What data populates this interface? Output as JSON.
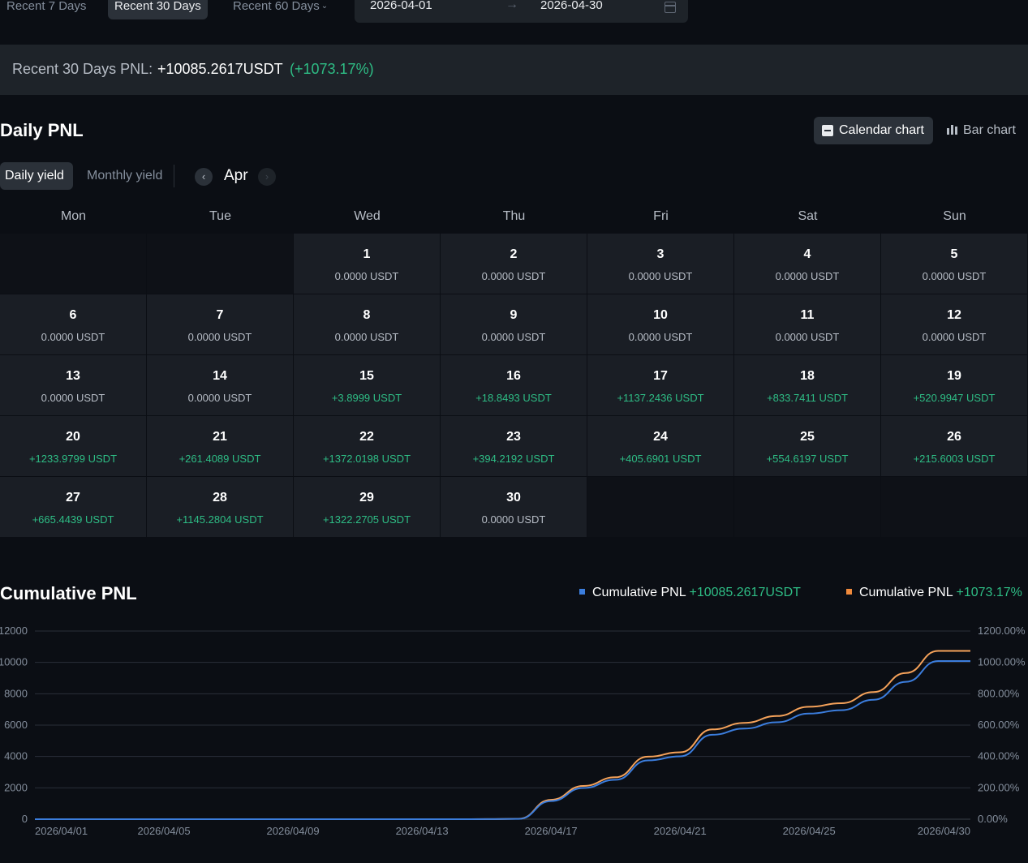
{
  "range": {
    "tabs": [
      {
        "label": "Recent 7 Days",
        "active": false
      },
      {
        "label": "Recent 30 Days",
        "active": true
      },
      {
        "label": "Recent 60 Days",
        "active": false
      }
    ],
    "date_from": "2026-04-01",
    "date_to": "2026-04-30"
  },
  "summary": {
    "label": "Recent 30 Days PNL:",
    "value": "+10085.2617USDT",
    "pct": "(+1073.17%)"
  },
  "daily": {
    "title": "Daily PNL",
    "view_calendar": "Calendar chart",
    "view_bar": "Bar chart",
    "tab_daily": "Daily yield",
    "tab_monthly": "Monthly yield",
    "month": "Apr",
    "weekdays": [
      "Mon",
      "Tue",
      "Wed",
      "Thu",
      "Fri",
      "Sat",
      "Sun"
    ],
    "first_weekday_index": 2,
    "days": [
      {
        "day": "1",
        "pnl": "0.0000 USDT"
      },
      {
        "day": "2",
        "pnl": "0.0000 USDT"
      },
      {
        "day": "3",
        "pnl": "0.0000 USDT"
      },
      {
        "day": "4",
        "pnl": "0.0000 USDT"
      },
      {
        "day": "5",
        "pnl": "0.0000 USDT"
      },
      {
        "day": "6",
        "pnl": "0.0000 USDT"
      },
      {
        "day": "7",
        "pnl": "0.0000 USDT"
      },
      {
        "day": "8",
        "pnl": "0.0000 USDT"
      },
      {
        "day": "9",
        "pnl": "0.0000 USDT"
      },
      {
        "day": "10",
        "pnl": "0.0000 USDT"
      },
      {
        "day": "11",
        "pnl": "0.0000 USDT"
      },
      {
        "day": "12",
        "pnl": "0.0000 USDT"
      },
      {
        "day": "13",
        "pnl": "0.0000 USDT"
      },
      {
        "day": "14",
        "pnl": "0.0000 USDT"
      },
      {
        "day": "15",
        "pnl": "+3.8999 USDT"
      },
      {
        "day": "16",
        "pnl": "+18.8493 USDT"
      },
      {
        "day": "17",
        "pnl": "+1137.2436 USDT"
      },
      {
        "day": "18",
        "pnl": "+833.7411 USDT"
      },
      {
        "day": "19",
        "pnl": "+520.9947 USDT"
      },
      {
        "day": "20",
        "pnl": "+1233.9799 USDT"
      },
      {
        "day": "21",
        "pnl": "+261.4089 USDT"
      },
      {
        "day": "22",
        "pnl": "+1372.0198 USDT"
      },
      {
        "day": "23",
        "pnl": "+394.2192 USDT"
      },
      {
        "day": "24",
        "pnl": "+405.6901 USDT"
      },
      {
        "day": "25",
        "pnl": "+554.6197 USDT"
      },
      {
        "day": "26",
        "pnl": "+215.6003 USDT"
      },
      {
        "day": "27",
        "pnl": "+665.4439 USDT"
      },
      {
        "day": "28",
        "pnl": "+1145.2804 USDT"
      },
      {
        "day": "29",
        "pnl": "+1322.2705 USDT"
      },
      {
        "day": "30",
        "pnl": "0.0000 USDT"
      }
    ]
  },
  "cumulative": {
    "title": "Cumulative PNL",
    "legend": [
      {
        "label": "Cumulative PNL",
        "value": "+10085.2617USDT",
        "color": "#3b7ddd"
      },
      {
        "label": "Cumulative PNL",
        "value": "+1073.17%",
        "color": "#f08a3c"
      }
    ]
  },
  "colors": {
    "positive": "#2ebd85",
    "series_usdt": "#3b7ddd",
    "series_pct": "#f5a25a"
  },
  "chart_data": {
    "type": "line",
    "title": "Cumulative PNL",
    "x": [
      "2026/04/01",
      "2026/04/02",
      "2026/04/03",
      "2026/04/04",
      "2026/04/05",
      "2026/04/06",
      "2026/04/07",
      "2026/04/08",
      "2026/04/09",
      "2026/04/10",
      "2026/04/11",
      "2026/04/12",
      "2026/04/13",
      "2026/04/14",
      "2026/04/15",
      "2026/04/16",
      "2026/04/17",
      "2026/04/18",
      "2026/04/19",
      "2026/04/20",
      "2026/04/21",
      "2026/04/22",
      "2026/04/23",
      "2026/04/24",
      "2026/04/25",
      "2026/04/26",
      "2026/04/27",
      "2026/04/28",
      "2026/04/29",
      "2026/04/30"
    ],
    "x_tick_labels": [
      "2026/04/01",
      "2026/04/05",
      "2026/04/09",
      "2026/04/13",
      "2026/04/17",
      "2026/04/21",
      "2026/04/25",
      "2026/04/30"
    ],
    "series": [
      {
        "name": "Cumulative PNL",
        "axis": "left",
        "values": [
          0,
          0,
          0,
          0,
          0,
          0,
          0,
          0,
          0,
          0,
          0,
          0,
          0,
          0,
          3.9,
          22.75,
          1159.99,
          1993.73,
          2514.73,
          3748.71,
          4010.12,
          5382.14,
          5776.36,
          6182.05,
          6736.67,
          6952.27,
          7617.71,
          8762.99,
          10085.26,
          10085.26
        ]
      },
      {
        "name": "Cumulative PNL",
        "axis": "right",
        "values": [
          0,
          0,
          0,
          0,
          0,
          0,
          0,
          0,
          0,
          0,
          0,
          0,
          0,
          0,
          0.41,
          2.42,
          123.44,
          212.16,
          267.6,
          398.91,
          426.73,
          572.73,
          614.68,
          657.85,
          716.87,
          739.82,
          810.63,
          932.5,
          1073.17,
          1073.17
        ]
      }
    ],
    "y_left": {
      "ticks": [
        0,
        2000,
        4000,
        6000,
        8000,
        10000,
        12000
      ],
      "ylim": [
        0,
        12000
      ]
    },
    "y_right": {
      "ticks": [
        "0.00%",
        "200.00%",
        "400.00%",
        "600.00%",
        "800.00%",
        "1000.00%",
        "1200.00%"
      ],
      "ylim": [
        0,
        1200
      ]
    },
    "grid": true
  }
}
